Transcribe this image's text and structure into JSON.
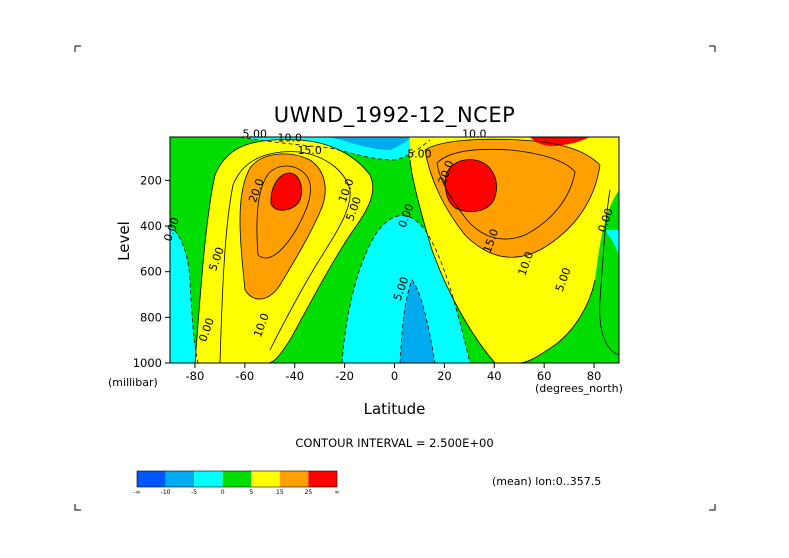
{
  "chart_data": {
    "type": "heatmap",
    "title": "UWND_1992-12_NCEP",
    "xlabel": "Latitude",
    "xunit": "(degrees_north)",
    "ylabel": "Level",
    "yunit": "(millibar)",
    "x_ticks": [
      "-80",
      "-60",
      "-40",
      "-20",
      "0",
      "20",
      "40",
      "60",
      "80"
    ],
    "x_tick_values": [
      -80,
      -60,
      -40,
      -20,
      0,
      20,
      40,
      60,
      80
    ],
    "xlim": [
      -90,
      90
    ],
    "y_ticks": [
      "200",
      "400",
      "600",
      "800",
      "1000"
    ],
    "y_tick_values": [
      200,
      400,
      600,
      800,
      1000
    ],
    "ylim": [
      1000,
      10
    ],
    "contour_labels": [
      {
        "text": "5.00",
        "x": -56,
        "y": 12
      },
      {
        "text": "10.0",
        "x": -42,
        "y": 30
      },
      {
        "text": "15.0",
        "x": -34,
        "y": 85
      },
      {
        "text": "20.0",
        "x": -54,
        "y": 250
      },
      {
        "text": "10.0",
        "x": -18,
        "y": 250
      },
      {
        "text": "5.00",
        "x": -15,
        "y": 330
      },
      {
        "text": "0.00",
        "x": -88,
        "y": 420
      },
      {
        "text": "5.00",
        "x": -70,
        "y": 550
      },
      {
        "text": "10.0",
        "x": -52,
        "y": 840
      },
      {
        "text": "0.00",
        "x": -74,
        "y": 860
      },
      {
        "text": "0.00",
        "x": 6,
        "y": 360
      },
      {
        "text": "5.00",
        "x": 4,
        "y": 680
      },
      {
        "text": "5.00",
        "x": 10,
        "y": 100
      },
      {
        "text": "10.0",
        "x": 32,
        "y": 12
      },
      {
        "text": "20.0",
        "x": 22,
        "y": 170
      },
      {
        "text": "15.0",
        "x": 40,
        "y": 470
      },
      {
        "text": "10.0",
        "x": 54,
        "y": 570
      },
      {
        "text": "5.00",
        "x": 69,
        "y": 640
      },
      {
        "text": "0.00",
        "x": 86,
        "y": 380
      }
    ],
    "contour_interval_text": "CONTOUR INTERVAL = 2.500E+00",
    "legend": {
      "colors": [
        "#0055ff",
        "#00aaee",
        "#00ffff",
        "#00dd00",
        "#ffff00",
        "#ffa000",
        "#ff0000"
      ],
      "labels": [
        "-∞",
        "-10",
        "-5",
        "0",
        "5",
        "15",
        "25",
        "∞"
      ]
    },
    "note": "(mean) lon:0..357.5"
  }
}
